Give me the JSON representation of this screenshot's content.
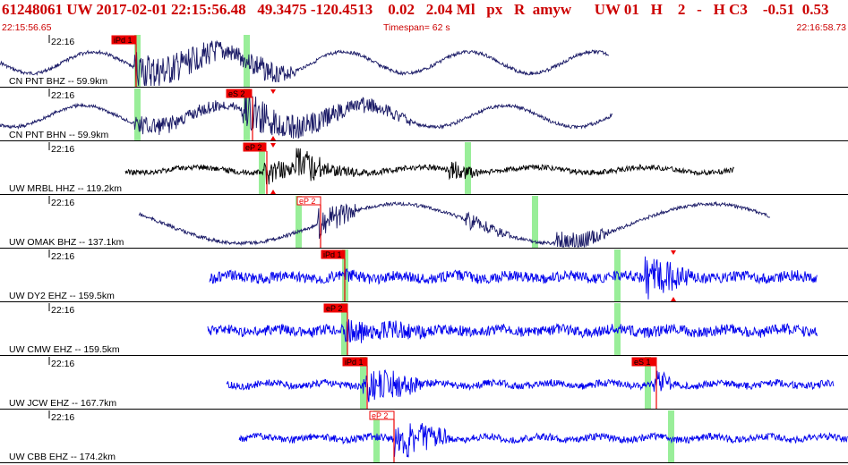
{
  "header": {
    "title": "61248061 UW 2017-02-01 22:15:56.48   49.3475 -120.4513    0.02   2.04 Ml   px   R  amyw      UW 01   H    2   -   H C3    -0.51  0.53",
    "start_time": "22:15:56.65",
    "timespan": "Timespan=  62 s",
    "end_time": "22:16:58.73"
  },
  "colors": {
    "title": "#cc0000",
    "trace_dark": "#1a1a66",
    "trace_black": "#000000",
    "trace_blue": "#0000ee",
    "pick_box": "#ee0000",
    "window": "#99ee99"
  },
  "traces": [
    {
      "label": "CN PNT BHZ -- 59.9km",
      "time": "22:16",
      "color": "dark",
      "picks": [
        {
          "text": "iPd 1",
          "style": "filled",
          "arrow": false
        }
      ]
    },
    {
      "label": "CN PNT BHN -- 59.9km",
      "time": "22:16",
      "color": "dark",
      "picks": [
        {
          "text": "eS 2",
          "style": "filled",
          "arrow": true
        }
      ]
    },
    {
      "label": "UW MRBL HHZ -- 119.2km",
      "time": "22:16",
      "color": "black",
      "picks": [
        {
          "text": "eP 2",
          "style": "filled",
          "arrow": false
        }
      ]
    },
    {
      "label": "UW OMAK BHZ -- 137.1km",
      "time": "22:16",
      "color": "dark",
      "picks": [
        {
          "text": "eP 2",
          "style": "outline",
          "arrow": false
        }
      ]
    },
    {
      "label": "UW DY2 EHZ -- 159.5km",
      "time": "22:16",
      "color": "blue",
      "picks": [
        {
          "text": "iPd 1",
          "style": "filled",
          "arrow": false
        },
        {
          "text": "",
          "style": "none",
          "arrow": true
        }
      ]
    },
    {
      "label": "UW CMW EHZ -- 159.5km",
      "time": "22:16",
      "color": "blue",
      "picks": [
        {
          "text": "eP 2",
          "style": "filled",
          "arrow": false
        }
      ]
    },
    {
      "label": "UW JCW EHZ -- 167.7km",
      "time": "22:16",
      "color": "blue",
      "picks": [
        {
          "text": "iPd 1",
          "style": "filled",
          "arrow": false
        },
        {
          "text": "eS 1",
          "style": "filled",
          "arrow": false
        }
      ]
    },
    {
      "label": "UW CBB EHZ -- 174.2km",
      "time": "22:16",
      "color": "blue",
      "picks": [
        {
          "text": "eP 2",
          "style": "outline",
          "arrow": false
        }
      ]
    }
  ]
}
